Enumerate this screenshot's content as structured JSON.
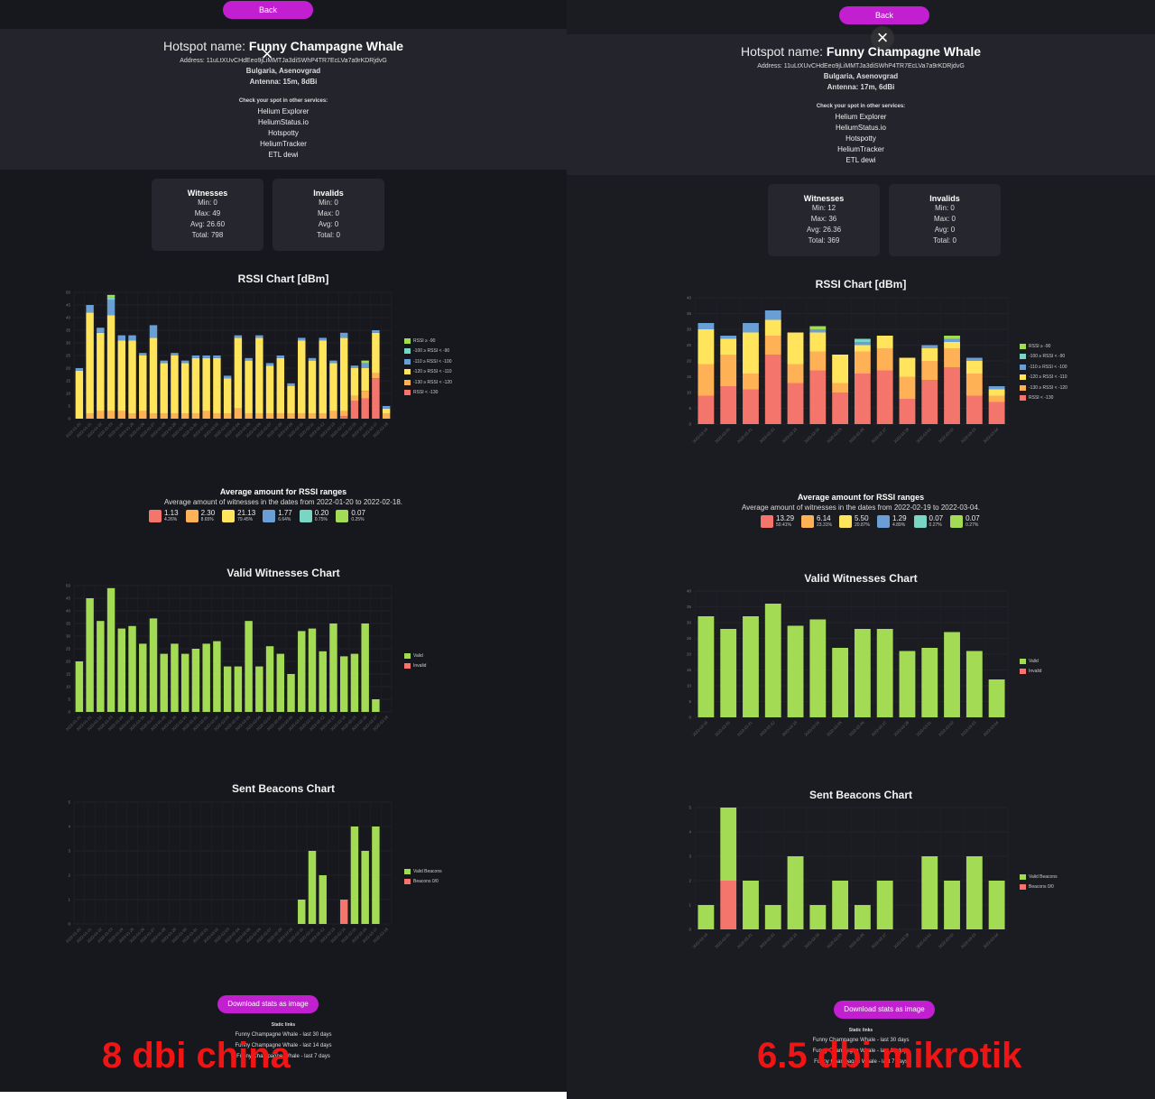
{
  "left": {
    "back_label": "Back",
    "close_icon": "×",
    "title_prefix": "Hotspot name:",
    "title_name": "Funny Champagne Whale",
    "address": "Address: 11uLtXUvCHdEeo9jLiMMTJa3diSWhP4TR7EcLVa7a9rKDRjdvG",
    "location": "Bulgaria, Asenovgrad",
    "antenna": "Antenna: 15m, 8dBi",
    "services_title": "Check your spot in other services:",
    "services": [
      "Helium Explorer",
      "HeliumStatus.io",
      "Hotspotty",
      "HeliumTracker",
      "ETL dewi"
    ],
    "witnesses": {
      "title": "Witnesses",
      "min": "Min: 0",
      "max": "Max: 49",
      "avg": "Avg: 26.60",
      "total": "Total: 798"
    },
    "invalids": {
      "title": "Invalids",
      "min": "Min: 0",
      "max": "Max: 0",
      "avg": "Avg: 0",
      "total": "Total: 0"
    },
    "rssi_title": "RSSI Chart [dBm]",
    "avg_title": "Average amount for RSSI ranges",
    "avg_sub": "Average amount of witnesses in the dates from 2022-01-20 to 2022-02-18.",
    "avg_items": [
      {
        "value": "1.13",
        "pct": "4.26%",
        "color": "#f4756b"
      },
      {
        "value": "2.30",
        "pct": "8.65%",
        "color": "#ffb155"
      },
      {
        "value": "21.13",
        "pct": "79.45%",
        "color": "#ffe45c"
      },
      {
        "value": "1.77",
        "pct": "6.64%",
        "color": "#6a9fd6"
      },
      {
        "value": "0.20",
        "pct": "0.75%",
        "color": "#7ad6c4"
      },
      {
        "value": "0.07",
        "pct": "0.25%",
        "color": "#a4db55"
      }
    ],
    "valid_title": "Valid Witnesses Chart",
    "beacons_title": "Sent Beacons Chart",
    "download_label": "Download stats as image",
    "static_title": "Static links",
    "static_links": [
      "Funny Champagne Whale - last 30 days",
      "Funny Champagne Whale - last 14 days",
      "Funny Champagne Whale - last 7 days"
    ],
    "overlay": "8 dbi china"
  },
  "right": {
    "back_label": "Back",
    "close_icon": "×",
    "title_prefix": "Hotspot name:",
    "title_name": "Funny Champagne Whale",
    "address": "Address: 11uLtXUvCHdEeo9jLiMMTJa3diSWhP4TR7EcLVa7a9rKDRjdvG",
    "location": "Bulgaria, Asenovgrad",
    "antenna": "Antenna: 17m, 6dBi",
    "services_title": "Check your spot in other services:",
    "services": [
      "Helium Explorer",
      "HeliumStatus.io",
      "Hotspotty",
      "HeliumTracker",
      "ETL dewi"
    ],
    "witnesses": {
      "title": "Witnesses",
      "min": "Min: 12",
      "max": "Max: 36",
      "avg": "Avg: 26.36",
      "total": "Total: 369"
    },
    "invalids": {
      "title": "Invalids",
      "min": "Min: 0",
      "max": "Max: 0",
      "avg": "Avg: 0",
      "total": "Total: 0"
    },
    "rssi_title": "RSSI Chart [dBm]",
    "avg_title": "Average amount for RSSI ranges",
    "avg_sub": "Average amount of witnesses in the dates from 2022-02-19 to 2022-03-04.",
    "avg_items": [
      {
        "value": "13.29",
        "pct": "50.41%",
        "color": "#f4756b"
      },
      {
        "value": "6.14",
        "pct": "23.31%",
        "color": "#ffb155"
      },
      {
        "value": "5.50",
        "pct": "20.87%",
        "color": "#ffe45c"
      },
      {
        "value": "1.29",
        "pct": "4.89%",
        "color": "#6a9fd6"
      },
      {
        "value": "0.07",
        "pct": "0.27%",
        "color": "#7ad6c4"
      },
      {
        "value": "0.07",
        "pct": "0.27%",
        "color": "#a4db55"
      }
    ],
    "valid_title": "Valid Witnesses Chart",
    "beacons_title": "Sent Beacons Chart",
    "download_label": "Download stats as image",
    "static_title": "Static links",
    "static_links": [
      "Funny Champagne Whale - last 30 days",
      "Funny Champagne Whale - last 14 days",
      "Funny Champagne Whale - last 7 days"
    ],
    "overlay": "6.5 dbi mikrotik"
  },
  "colors": {
    "rssi_gt_90": "#a4db55",
    "rssi_100_90": "#7ad6c4",
    "rssi_110_100": "#6a9fd6",
    "rssi_120_110": "#ffe45c",
    "rssi_130_120": "#ffb155",
    "rssi_lt_130": "#f4756b",
    "valid": "#a4db55",
    "invalid": "#f4756b",
    "accent": "#c21fd1"
  },
  "rssi_legend": [
    "RSSI ≥ -90",
    "-100 ≥ RSSI < -90",
    "-110 ≥ RSSI < -100",
    "-120 ≥ RSSI < -110",
    "-130 ≥ RSSI < -120",
    "RSSI < -130"
  ],
  "valid_legend": [
    "Valid",
    "Invalid"
  ],
  "beacons_legend": [
    "Valid Beacons",
    "Beacons 0/0"
  ],
  "chart_data": [
    {
      "id": "left-rssi",
      "type": "bar",
      "title": "RSSI Chart [dBm]",
      "ylim": [
        0,
        50
      ],
      "yticks": [
        0,
        5,
        10,
        15,
        20,
        25,
        30,
        35,
        40,
        45,
        50
      ],
      "categories": [
        "2022-01-20",
        "2022-01-21",
        "2022-01-22",
        "2022-01-23",
        "2022-01-24",
        "2022-01-25",
        "2022-01-26",
        "2022-01-27",
        "2022-01-28",
        "2022-01-29",
        "2022-01-30",
        "2022-01-31",
        "2022-02-01",
        "2022-02-02",
        "2022-02-03",
        "2022-02-04",
        "2022-02-05",
        "2022-02-06",
        "2022-02-07",
        "2022-02-08",
        "2022-02-09",
        "2022-02-10",
        "2022-02-11",
        "2022-02-12",
        "2022-02-13",
        "2022-02-14",
        "2022-02-15",
        "2022-02-16",
        "2022-02-17",
        "2022-02-18"
      ],
      "series": [
        {
          "name": "RSSI < -130",
          "values": [
            0,
            0,
            0,
            0,
            0,
            0,
            0,
            0,
            0,
            0,
            0,
            0,
            0,
            0,
            0,
            0,
            0,
            0,
            0,
            0,
            0,
            0,
            0,
            0,
            0,
            1,
            7,
            8,
            16,
            0
          ]
        },
        {
          "name": "-130 ≥ RSSI < -120",
          "values": [
            0,
            2,
            3,
            3,
            3,
            2,
            3,
            2,
            2,
            2,
            2,
            2,
            3,
            2,
            2,
            4,
            2,
            2,
            2,
            2,
            2,
            2,
            2,
            2,
            3,
            2,
            2,
            3,
            2,
            2
          ]
        },
        {
          "name": "-120 ≥ RSSI < -110",
          "values": [
            19,
            40,
            31,
            38,
            28,
            29,
            22,
            30,
            20,
            23,
            20,
            22,
            21,
            22,
            14,
            28,
            21,
            30,
            19,
            22,
            11,
            29,
            21,
            29,
            19,
            29,
            11,
            9,
            16,
            2
          ]
        },
        {
          "name": "-110 ≥ RSSI < -100",
          "values": [
            1,
            3,
            2,
            6,
            2,
            2,
            1,
            5,
            1,
            1,
            1,
            1,
            1,
            1,
            1,
            1,
            1,
            1,
            1,
            1,
            1,
            1,
            1,
            1,
            1,
            2,
            1,
            2,
            1,
            1
          ]
        },
        {
          "name": "-100 ≥ RSSI < -90",
          "values": [
            0,
            0,
            0,
            1,
            0,
            0,
            0,
            0,
            0,
            0,
            0,
            0,
            0,
            0,
            0,
            0,
            0,
            0,
            0,
            0,
            0,
            0,
            0,
            0,
            0,
            0,
            0,
            0,
            0,
            0
          ]
        },
        {
          "name": "RSSI ≥ -90",
          "values": [
            0,
            0,
            0,
            1,
            0,
            0,
            0,
            0,
            0,
            0,
            0,
            0,
            0,
            0,
            0,
            0,
            0,
            0,
            0,
            0,
            0,
            0,
            0,
            0,
            0,
            0,
            0,
            1,
            0,
            0
          ]
        }
      ]
    },
    {
      "id": "left-valid",
      "type": "bar",
      "title": "Valid Witnesses Chart",
      "ylim": [
        0,
        50
      ],
      "yticks": [
        0,
        5,
        10,
        15,
        20,
        25,
        30,
        35,
        40,
        45,
        50
      ],
      "categories": [
        "2022-01-20",
        "2022-01-21",
        "2022-01-22",
        "2022-01-23",
        "2022-01-24",
        "2022-01-25",
        "2022-01-26",
        "2022-01-27",
        "2022-01-28",
        "2022-01-29",
        "2022-01-30",
        "2022-01-31",
        "2022-02-01",
        "2022-02-02",
        "2022-02-03",
        "2022-02-04",
        "2022-02-05",
        "2022-02-06",
        "2022-02-07",
        "2022-02-08",
        "2022-02-09",
        "2022-02-10",
        "2022-02-11",
        "2022-02-12",
        "2022-02-13",
        "2022-02-14",
        "2022-02-15",
        "2022-02-16",
        "2022-02-17",
        "2022-02-18"
      ],
      "series": [
        {
          "name": "Valid",
          "values": [
            20,
            45,
            36,
            49,
            33,
            34,
            27,
            37,
            23,
            27,
            23,
            25,
            27,
            28,
            18,
            18,
            36,
            18,
            26,
            23,
            15,
            32,
            33,
            24,
            35,
            22,
            23,
            35,
            5,
            0
          ]
        },
        {
          "name": "Invalid",
          "values": [
            0,
            0,
            0,
            0,
            0,
            0,
            0,
            0,
            0,
            0,
            0,
            0,
            0,
            0,
            0,
            0,
            0,
            0,
            0,
            0,
            0,
            0,
            0,
            0,
            0,
            0,
            0,
            0,
            0,
            0
          ]
        }
      ]
    },
    {
      "id": "left-beacons",
      "type": "bar",
      "title": "Sent Beacons Chart",
      "ylim": [
        0,
        5
      ],
      "yticks": [
        0,
        1,
        2,
        3,
        4,
        5
      ],
      "categories": [
        "2022-01-20",
        "2022-01-21",
        "2022-01-22",
        "2022-01-23",
        "2022-01-24",
        "2022-01-25",
        "2022-01-26",
        "2022-01-27",
        "2022-01-28",
        "2022-01-29",
        "2022-01-30",
        "2022-01-31",
        "2022-02-01",
        "2022-02-02",
        "2022-02-03",
        "2022-02-04",
        "2022-02-05",
        "2022-02-06",
        "2022-02-07",
        "2022-02-08",
        "2022-02-09",
        "2022-02-10",
        "2022-02-11",
        "2022-02-12",
        "2022-02-13",
        "2022-02-14",
        "2022-02-15",
        "2022-02-16",
        "2022-02-17",
        "2022-02-18"
      ],
      "series": [
        {
          "name": "Beacons 0/0",
          "values": [
            0,
            0,
            0,
            0,
            0,
            0,
            0,
            0,
            0,
            0,
            0,
            0,
            0,
            0,
            0,
            0,
            0,
            0,
            0,
            0,
            0,
            0,
            0,
            0,
            0,
            1,
            0,
            0,
            0,
            0
          ]
        },
        {
          "name": "Valid Beacons",
          "values": [
            0,
            0,
            0,
            0,
            0,
            0,
            0,
            0,
            0,
            0,
            0,
            0,
            0,
            0,
            0,
            0,
            0,
            0,
            0,
            0,
            0,
            1,
            3,
            2,
            0,
            0,
            4,
            3,
            4,
            0
          ]
        }
      ]
    },
    {
      "id": "right-rssi",
      "type": "bar",
      "title": "RSSI Chart [dBm]",
      "ylim": [
        0,
        40
      ],
      "yticks": [
        0,
        5,
        10,
        15,
        20,
        25,
        30,
        35,
        40
      ],
      "categories": [
        "2022-02-19",
        "2022-02-20",
        "2022-02-21",
        "2022-02-22",
        "2022-02-23",
        "2022-02-24",
        "2022-02-25",
        "2022-02-26",
        "2022-02-27",
        "2022-02-28",
        "2022-03-01",
        "2022-03-02",
        "2022-03-03",
        "2022-03-04"
      ],
      "series": [
        {
          "name": "RSSI < -130",
          "values": [
            9,
            12,
            11,
            22,
            13,
            17,
            10,
            16,
            17,
            8,
            14,
            18,
            9,
            7
          ]
        },
        {
          "name": "-130 ≥ RSSI < -120",
          "values": [
            10,
            10,
            5,
            6,
            6,
            6,
            3,
            7,
            7,
            7,
            6,
            6,
            7,
            2
          ]
        },
        {
          "name": "-120 ≥ RSSI < -110",
          "values": [
            11,
            5,
            13,
            5,
            10,
            6,
            9,
            2,
            4,
            6,
            4,
            2,
            4,
            2
          ]
        },
        {
          "name": "-110 ≥ RSSI < -100",
          "values": [
            2,
            1,
            3,
            3,
            0,
            1,
            0,
            1,
            0,
            0,
            1,
            1,
            1,
            1
          ]
        },
        {
          "name": "-100 ≥ RSSI < -90",
          "values": [
            0,
            0,
            0,
            0,
            0,
            0,
            0,
            1,
            0,
            0,
            0,
            0,
            0,
            0
          ]
        },
        {
          "name": "RSSI ≥ -90",
          "values": [
            0,
            0,
            0,
            0,
            0,
            1,
            0,
            0,
            0,
            0,
            0,
            1,
            0,
            0
          ]
        }
      ]
    },
    {
      "id": "right-valid",
      "type": "bar",
      "title": "Valid Witnesses Chart",
      "ylim": [
        0,
        40
      ],
      "yticks": [
        0,
        5,
        10,
        15,
        20,
        25,
        30,
        35,
        40
      ],
      "categories": [
        "2022-02-19",
        "2022-02-20",
        "2022-02-21",
        "2022-02-22",
        "2022-02-23",
        "2022-02-24",
        "2022-02-25",
        "2022-02-26",
        "2022-02-27",
        "2022-02-28",
        "2022-03-01",
        "2022-03-02",
        "2022-03-03",
        "2022-03-04"
      ],
      "series": [
        {
          "name": "Valid",
          "values": [
            32,
            28,
            32,
            36,
            29,
            31,
            22,
            28,
            28,
            21,
            22,
            27,
            21,
            12
          ]
        },
        {
          "name": "Invalid",
          "values": [
            0,
            0,
            0,
            0,
            0,
            0,
            0,
            0,
            0,
            0,
            0,
            0,
            0,
            0
          ]
        }
      ]
    },
    {
      "id": "right-beacons",
      "type": "bar",
      "title": "Sent Beacons Chart",
      "ylim": [
        0,
        5
      ],
      "yticks": [
        0,
        1,
        2,
        3,
        4,
        5
      ],
      "categories": [
        "2022-02-19",
        "2022-02-20",
        "2022-02-21",
        "2022-02-22",
        "2022-02-23",
        "2022-02-24",
        "2022-02-25",
        "2022-02-26",
        "2022-02-27",
        "2022-02-28",
        "2022-03-01",
        "2022-03-02",
        "2022-03-03",
        "2022-03-04"
      ],
      "series": [
        {
          "name": "Beacons 0/0",
          "values": [
            0,
            2,
            0,
            0,
            0,
            0,
            0,
            0,
            0,
            0,
            0,
            0,
            0,
            0
          ]
        },
        {
          "name": "Valid Beacons",
          "values": [
            1,
            3,
            2,
            1,
            3,
            1,
            2,
            1,
            2,
            0,
            3,
            2,
            3,
            2
          ]
        }
      ]
    }
  ]
}
